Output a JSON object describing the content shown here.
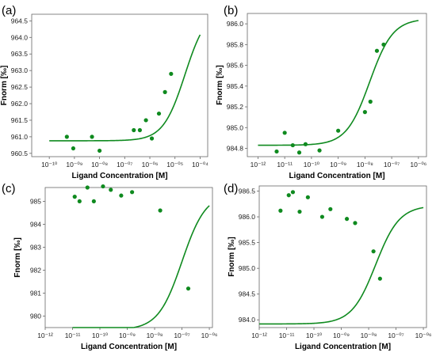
{
  "figure": {
    "background": "#ffffff",
    "series_color": "#0f8a1f",
    "axis_color": "#666666"
  },
  "chart_data": [
    {
      "panel_label": "(a)",
      "type": "scatter",
      "xlabel": "Ligand Concentration [M]",
      "ylabel": "Fnorm [‰]",
      "x_scale": "log",
      "x_ticks": [
        1e-10,
        1e-09,
        1e-08,
        1e-07,
        1e-06,
        1e-05,
        0.0001
      ],
      "x_tick_labels": [
        "10⁻¹⁰",
        "10⁻⁰⁹",
        "10⁻⁰⁸",
        "10⁻⁰⁷",
        "10⁻⁰⁶",
        "10⁻⁰⁵",
        "10⁻⁰⁴"
      ],
      "y_ticks": [
        960.5,
        961.0,
        961.5,
        962.0,
        962.5,
        963.0,
        963.5,
        964.0,
        964.5
      ],
      "y_tick_labels": [
        "960.5",
        "961.0",
        "961.5",
        "962.0",
        "962.5",
        "963.0",
        "963.5",
        "964.0",
        "964.5"
      ],
      "xlim": [
        2e-11,
        0.0002
      ],
      "ylim": [
        960.4,
        964.7
      ],
      "points": [
        [
          5e-10,
          961.0
        ],
        [
          9e-10,
          960.65
        ],
        [
          5e-09,
          961.0
        ],
        [
          1e-08,
          960.58
        ],
        [
          2.3e-07,
          961.2
        ],
        [
          4e-07,
          961.2
        ],
        [
          7e-07,
          961.5
        ],
        [
          1.2e-06,
          960.95
        ],
        [
          2.3e-06,
          961.7
        ],
        [
          4e-06,
          962.35
        ],
        [
          7e-06,
          962.9
        ]
      ],
      "fit_curve": {
        "model": "sigmoid",
        "bottom": 960.88,
        "top": 964.88,
        "ec50": 2.5e-05,
        "hill": 1.0,
        "x_range": [
          1e-10,
          0.0001
        ]
      }
    },
    {
      "panel_label": "(b)",
      "type": "scatter",
      "xlabel": "Ligand Concentration [M]",
      "ylabel": "Fnorm [‰]",
      "x_scale": "log",
      "x_ticks": [
        1e-12,
        1e-11,
        1e-10,
        1e-09,
        1e-08,
        1e-07,
        1e-06
      ],
      "x_tick_labels": [
        "10⁻¹²",
        "10⁻¹¹",
        "10⁻¹⁰",
        "10⁻⁰⁹",
        "10⁻⁰⁸",
        "10⁻⁰⁷",
        "10⁻⁰⁶"
      ],
      "y_ticks": [
        984.8,
        985.0,
        985.2,
        985.4,
        985.6,
        985.8,
        986.0
      ],
      "y_tick_labels": [
        "984.8",
        "985.0",
        "985.2",
        "985.4",
        "985.6",
        "985.8",
        "986.0"
      ],
      "xlim": [
        4e-13,
        2e-06
      ],
      "ylim": [
        984.72,
        986.1
      ],
      "points": [
        [
          5e-12,
          984.77
        ],
        [
          1e-11,
          984.95
        ],
        [
          2e-11,
          984.83
        ],
        [
          3.5e-11,
          984.76
        ],
        [
          6e-11,
          984.84
        ],
        [
          2e-10,
          984.78
        ],
        [
          1e-09,
          984.97
        ],
        [
          1e-08,
          985.15
        ],
        [
          1.6e-08,
          985.25
        ],
        [
          2.8e-08,
          985.74
        ],
        [
          5e-08,
          985.8
        ]
      ],
      "fit_curve": {
        "model": "sigmoid",
        "bottom": 984.83,
        "top": 986.05,
        "ec50": 1.5e-08,
        "hill": 1.0,
        "x_range": [
          1e-12,
          1e-06
        ]
      }
    },
    {
      "panel_label": "(c)",
      "type": "scatter",
      "xlabel": "Ligand Concentration [M]",
      "ylabel": "Fnorm [‰]",
      "x_scale": "log",
      "x_ticks": [
        1e-12,
        1e-11,
        1e-10,
        1e-09,
        1e-08,
        1e-07,
        1e-06
      ],
      "x_tick_labels": [
        "10⁻¹²",
        "10⁻¹¹",
        "10⁻¹⁰",
        "10⁻⁰⁹",
        "10⁻⁰⁸",
        "10⁻⁰⁷",
        "10⁻⁰⁶"
      ],
      "y_ticks": [
        980,
        981,
        982,
        983,
        984,
        985
      ],
      "y_tick_labels": [
        "980",
        "981",
        "982",
        "983",
        "984",
        "985"
      ],
      "xlim": [
        1e-12,
        1.3e-06
      ],
      "ylim": [
        979.5,
        985.6
      ],
      "points": [
        [
          1.2e-11,
          985.2
        ],
        [
          1.8e-11,
          985.0
        ],
        [
          3.5e-11,
          985.6
        ],
        [
          6e-11,
          985.0
        ],
        [
          1.3e-10,
          985.65
        ],
        [
          2.5e-10,
          985.5
        ],
        [
          6e-10,
          985.25
        ],
        [
          1.5e-09,
          985.4
        ],
        [
          1.6e-08,
          984.6
        ],
        [
          1.7e-07,
          981.2
        ]
      ],
      "fit_curve": {
        "model": "sigmoid",
        "bottom": 979.4,
        "top": 985.35,
        "ec50": 1e-07,
        "hill": 1.0,
        "x_range": [
          1e-11,
          1e-06
        ]
      }
    },
    {
      "panel_label": "(d)",
      "type": "scatter",
      "xlabel": "Ligand Concentration [M]",
      "ylabel": "Fnorm [‰]",
      "x_scale": "log",
      "x_ticks": [
        1e-12,
        1e-11,
        1e-10,
        1e-09,
        1e-08,
        1e-07,
        1e-06
      ],
      "x_tick_labels": [
        "10⁻¹²",
        "10⁻¹¹",
        "10⁻¹⁰",
        "10⁻⁰⁹",
        "10⁻⁰⁸",
        "10⁻⁰⁷",
        "10⁻⁰⁶"
      ],
      "y_ticks": [
        984.0,
        984.5,
        985.0,
        985.5,
        986.0,
        986.5
      ],
      "y_tick_labels": [
        "984.0",
        "984.5",
        "985.0",
        "985.5",
        "986.0",
        "986.5"
      ],
      "xlim": [
        1e-12,
        1.3e-06
      ],
      "ylim": [
        983.85,
        986.6
      ],
      "points": [
        [
          6e-12,
          986.12
        ],
        [
          1.2e-11,
          986.42
        ],
        [
          1.7e-11,
          986.48
        ],
        [
          3e-11,
          986.1
        ],
        [
          6e-11,
          986.38
        ],
        [
          2e-10,
          986.0
        ],
        [
          4e-10,
          986.15
        ],
        [
          1.6e-09,
          985.96
        ],
        [
          3.2e-09,
          985.88
        ],
        [
          1.5e-08,
          985.33
        ],
        [
          2.6e-08,
          984.8
        ]
      ],
      "fit_curve": {
        "model": "sigmoid",
        "bottom": 983.92,
        "top": 986.22,
        "ec50": 1.8e-08,
        "hill": 1.0,
        "x_range": [
          1e-12,
          1e-06
        ]
      }
    }
  ]
}
